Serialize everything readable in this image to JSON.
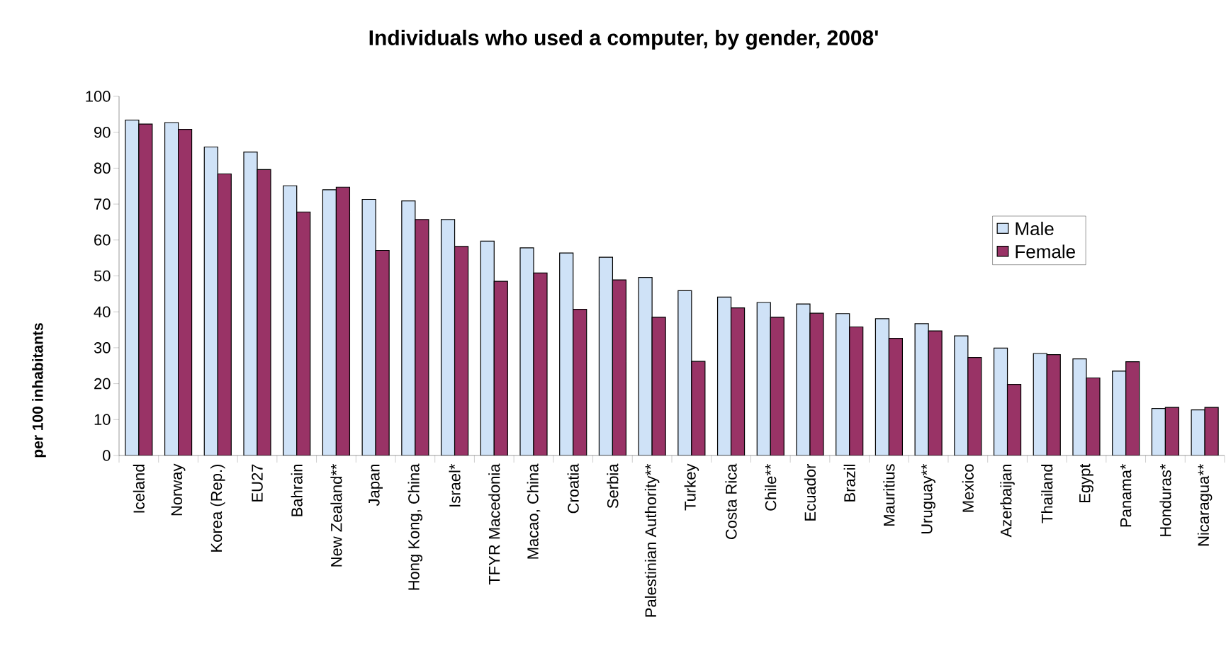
{
  "chart_data": {
    "type": "bar",
    "title": "Individuals who used a computer, by gender, 2008'",
    "ylabel": "per 100 inhabitants",
    "categories": [
      "Iceland",
      "Norway",
      "Korea (Rep.)",
      "EU27",
      "Bahrain",
      "New Zealand**",
      "Japan",
      "Hong Kong, China",
      "Israel*",
      "TFYR Macedonia",
      "Macao, China",
      "Croatia",
      "Serbia",
      "Palestinian Authority**",
      "Turkey",
      "Costa Rica",
      "Chile**",
      "Ecuador",
      "Brazil",
      "Mauritius",
      "Uruguay**",
      "Mexico",
      "Azerbaijan",
      "Thailand",
      "Egypt",
      "Panama*",
      "Honduras*",
      "Nicaragua**"
    ],
    "series": [
      {
        "name": "Male",
        "color": "#cfe2f7",
        "values": [
          93.4,
          92.7,
          85.9,
          84.5,
          75.1,
          74.0,
          71.3,
          70.9,
          65.7,
          59.7,
          57.8,
          56.4,
          55.2,
          49.6,
          45.9,
          44.1,
          42.6,
          42.2,
          39.5,
          38.1,
          36.7,
          33.3,
          29.9,
          28.4,
          26.9,
          23.5,
          13.1,
          12.7
        ]
      },
      {
        "name": "Female",
        "color": "#993366",
        "values": [
          92.3,
          90.8,
          78.4,
          79.6,
          67.8,
          74.7,
          57.1,
          65.7,
          58.2,
          48.5,
          50.8,
          40.7,
          48.9,
          38.5,
          26.2,
          41.1,
          38.5,
          39.6,
          35.8,
          32.6,
          34.7,
          27.3,
          19.8,
          28.1,
          21.6,
          26.1,
          13.4,
          13.4
        ]
      }
    ],
    "ylim": [
      0,
      100
    ],
    "yticks": [
      0,
      10,
      20,
      30,
      40,
      50,
      60,
      70,
      80,
      90,
      100
    ],
    "legend": "right",
    "grid": false
  }
}
